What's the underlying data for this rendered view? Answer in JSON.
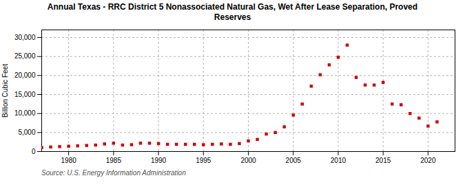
{
  "chart_data": {
    "type": "scatter",
    "title": "Annual Texas - RRC District 5 Nonassociated Natural Gas, Wet After Lease Separation, Proved\nReserves",
    "ylabel": "Billion Cubic Feet",
    "source": "Source: U.S. Energy Information Administration",
    "color": "#cc0000",
    "marker": "square",
    "grid": true,
    "x": [
      1977,
      1978,
      1979,
      1980,
      1981,
      1982,
      1983,
      1984,
      1985,
      1986,
      1987,
      1988,
      1989,
      1990,
      1991,
      1992,
      1993,
      1994,
      1995,
      1996,
      1997,
      1998,
      1999,
      2000,
      2001,
      2002,
      2003,
      2004,
      2005,
      2006,
      2007,
      2008,
      2009,
      2010,
      2011,
      2012,
      2013,
      2014,
      2015,
      2016,
      2017,
      2018,
      2019,
      2020,
      2021
    ],
    "values": [
      1050,
      1200,
      1300,
      1400,
      1500,
      1600,
      1700,
      2000,
      2200,
      1700,
      1800,
      2200,
      2200,
      2100,
      1900,
      1900,
      1900,
      1900,
      1800,
      1900,
      2000,
      1900,
      2100,
      2800,
      3200,
      4600,
      5000,
      6500,
      9600,
      12500,
      17200,
      20200,
      22800,
      24800,
      28000,
      19500,
      17500,
      17500,
      18200,
      12500,
      12300,
      10000,
      8800,
      6700,
      7800
    ],
    "xlim": [
      1977,
      2023
    ],
    "ylim": [
      0,
      32000
    ],
    "xticks": [
      1980,
      1985,
      1990,
      1995,
      2000,
      2005,
      2010,
      2015,
      2020
    ],
    "yticks": [
      0,
      {
        "value": 5000,
        "label": "5,000"
      },
      {
        "value": 10000,
        "label": "10,000"
      },
      {
        "value": 15000,
        "label": "15,000"
      },
      {
        "value": 20000,
        "label": "20,000"
      },
      {
        "value": 25000,
        "label": "25,000"
      },
      {
        "value": 30000,
        "label": "30,000"
      }
    ]
  }
}
